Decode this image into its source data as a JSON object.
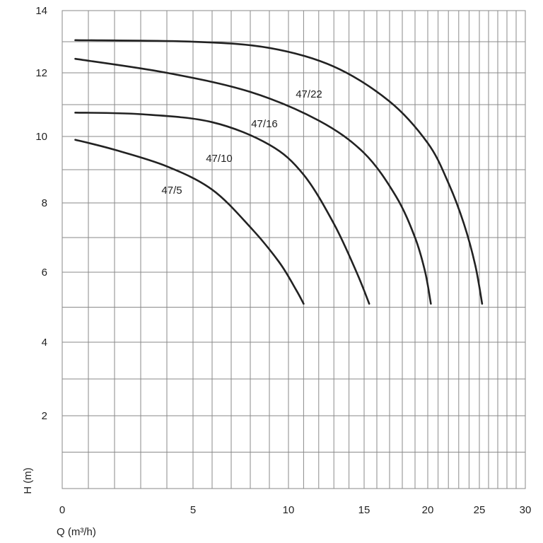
{
  "chart_data": {
    "type": "line",
    "title": "",
    "xlabel": "Q (m³/h)",
    "ylabel": "H (m)",
    "xlim": [
      0,
      30
    ],
    "ylim": [
      0,
      14
    ],
    "grid": true,
    "x_tick_labels": [
      "0",
      "5",
      "10",
      "15",
      "20",
      "25",
      "30"
    ],
    "y_tick_labels": [
      "2",
      "4",
      "6",
      "8",
      "10",
      "12",
      "14"
    ],
    "series": [
      {
        "name": "47/5",
        "x": [
          0.5,
          2,
          4,
          6,
          8,
          9.5,
          10.5,
          11.0
        ],
        "y": [
          9.9,
          9.6,
          9.1,
          8.4,
          7.3,
          6.3,
          5.5,
          5.1
        ]
      },
      {
        "name": "47/10",
        "x": [
          0.5,
          3,
          6,
          9,
          11,
          13,
          14.5,
          15.4
        ],
        "y": [
          10.75,
          10.7,
          10.45,
          9.75,
          8.85,
          7.4,
          6.0,
          5.1
        ]
      },
      {
        "name": "47/16",
        "x": [
          0.5,
          4,
          8,
          12,
          15,
          17.5,
          19,
          19.8,
          20.3
        ],
        "y": [
          12.45,
          12.0,
          11.4,
          10.5,
          9.5,
          8.2,
          7.0,
          6.0,
          5.1
        ]
      },
      {
        "name": "47/22",
        "x": [
          0.5,
          5,
          9,
          13,
          17,
          20,
          22,
          23.5,
          24.6,
          25.3
        ],
        "y": [
          13.05,
          13.0,
          12.8,
          12.2,
          11.1,
          9.8,
          8.6,
          7.4,
          6.2,
          5.1
        ]
      }
    ]
  }
}
